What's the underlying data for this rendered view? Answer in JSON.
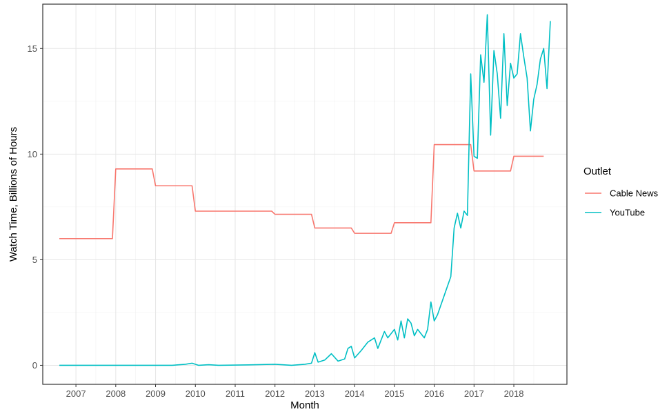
{
  "chart_data": {
    "type": "line",
    "xlabel": "Month",
    "ylabel": "Watch Time, Billions of Hours",
    "xlim": [
      "2006-03-01",
      "2019-05-01"
    ],
    "ylim": [
      -0.9,
      17.1
    ],
    "x_ticks": [
      "2007",
      "2008",
      "2009",
      "2010",
      "2011",
      "2012",
      "2013",
      "2014",
      "2015",
      "2016",
      "2017",
      "2018"
    ],
    "y_ticks": [
      0,
      5,
      10,
      15
    ],
    "grid": true,
    "legend": {
      "title": "Outlet",
      "position": "right"
    },
    "series": [
      {
        "name": "Cable News",
        "color": "#F8766D",
        "points": [
          [
            "2006-08-01",
            6.0
          ],
          [
            "2007-12-01",
            6.0
          ],
          [
            "2008-01-01",
            9.3
          ],
          [
            "2008-12-01",
            9.3
          ],
          [
            "2009-01-01",
            8.5
          ],
          [
            "2009-12-01",
            8.5
          ],
          [
            "2010-01-01",
            7.3
          ],
          [
            "2011-12-01",
            7.3
          ],
          [
            "2012-01-01",
            7.15
          ],
          [
            "2012-12-01",
            7.15
          ],
          [
            "2013-01-01",
            6.5
          ],
          [
            "2013-12-01",
            6.5
          ],
          [
            "2014-01-01",
            6.25
          ],
          [
            "2014-12-01",
            6.25
          ],
          [
            "2015-01-01",
            6.75
          ],
          [
            "2015-12-01",
            6.75
          ],
          [
            "2016-01-01",
            10.45
          ],
          [
            "2016-12-01",
            10.45
          ],
          [
            "2017-01-01",
            9.2
          ],
          [
            "2017-12-01",
            9.2
          ],
          [
            "2018-01-01",
            9.9
          ],
          [
            "2018-10-01",
            9.9
          ]
        ]
      },
      {
        "name": "YouTube",
        "color": "#00BFC4",
        "points": [
          [
            "2006-08-01",
            0.0
          ],
          [
            "2009-06-01",
            0.0
          ],
          [
            "2009-10-01",
            0.05
          ],
          [
            "2009-12-01",
            0.1
          ],
          [
            "2010-02-01",
            0.0
          ],
          [
            "2010-05-01",
            0.03
          ],
          [
            "2010-08-01",
            0.0
          ],
          [
            "2011-05-01",
            0.02
          ],
          [
            "2012-01-01",
            0.05
          ],
          [
            "2012-06-01",
            0.0
          ],
          [
            "2012-10-01",
            0.05
          ],
          [
            "2012-12-01",
            0.1
          ],
          [
            "2013-01-01",
            0.6
          ],
          [
            "2013-02-01",
            0.15
          ],
          [
            "2013-04-01",
            0.25
          ],
          [
            "2013-06-01",
            0.55
          ],
          [
            "2013-08-01",
            0.2
          ],
          [
            "2013-10-01",
            0.3
          ],
          [
            "2013-11-01",
            0.8
          ],
          [
            "2013-12-01",
            0.9
          ],
          [
            "2014-01-01",
            0.35
          ],
          [
            "2014-03-01",
            0.7
          ],
          [
            "2014-05-01",
            1.1
          ],
          [
            "2014-07-01",
            1.3
          ],
          [
            "2014-08-01",
            0.8
          ],
          [
            "2014-10-01",
            1.6
          ],
          [
            "2014-11-01",
            1.3
          ],
          [
            "2015-01-01",
            1.7
          ],
          [
            "2015-02-01",
            1.2
          ],
          [
            "2015-03-01",
            2.1
          ],
          [
            "2015-04-01",
            1.3
          ],
          [
            "2015-05-01",
            2.2
          ],
          [
            "2015-06-01",
            2.0
          ],
          [
            "2015-07-01",
            1.4
          ],
          [
            "2015-08-01",
            1.7
          ],
          [
            "2015-10-01",
            1.3
          ],
          [
            "2015-11-01",
            1.7
          ],
          [
            "2015-12-01",
            3.0
          ],
          [
            "2016-01-01",
            2.1
          ],
          [
            "2016-02-01",
            2.4
          ],
          [
            "2016-04-01",
            3.3
          ],
          [
            "2016-06-01",
            4.2
          ],
          [
            "2016-07-01",
            6.5
          ],
          [
            "2016-08-01",
            7.2
          ],
          [
            "2016-09-01",
            6.5
          ],
          [
            "2016-10-01",
            7.3
          ],
          [
            "2016-11-01",
            7.1
          ],
          [
            "2016-12-01",
            13.8
          ],
          [
            "2017-01-01",
            9.9
          ],
          [
            "2017-02-01",
            9.8
          ],
          [
            "2017-03-01",
            14.7
          ],
          [
            "2017-04-01",
            13.4
          ],
          [
            "2017-05-01",
            16.6
          ],
          [
            "2017-06-01",
            10.9
          ],
          [
            "2017-07-01",
            14.9
          ],
          [
            "2017-08-01",
            13.8
          ],
          [
            "2017-09-01",
            11.7
          ],
          [
            "2017-10-01",
            15.7
          ],
          [
            "2017-11-01",
            12.3
          ],
          [
            "2017-12-01",
            14.3
          ],
          [
            "2018-01-01",
            13.6
          ],
          [
            "2018-02-01",
            13.8
          ],
          [
            "2018-03-01",
            15.7
          ],
          [
            "2018-04-01",
            14.6
          ],
          [
            "2018-05-01",
            13.6
          ],
          [
            "2018-06-01",
            11.1
          ],
          [
            "2018-07-01",
            12.6
          ],
          [
            "2018-08-01",
            13.3
          ],
          [
            "2018-09-01",
            14.5
          ],
          [
            "2018-10-01",
            15.0
          ],
          [
            "2018-11-01",
            13.1
          ],
          [
            "2018-12-01",
            16.3
          ]
        ]
      }
    ]
  }
}
